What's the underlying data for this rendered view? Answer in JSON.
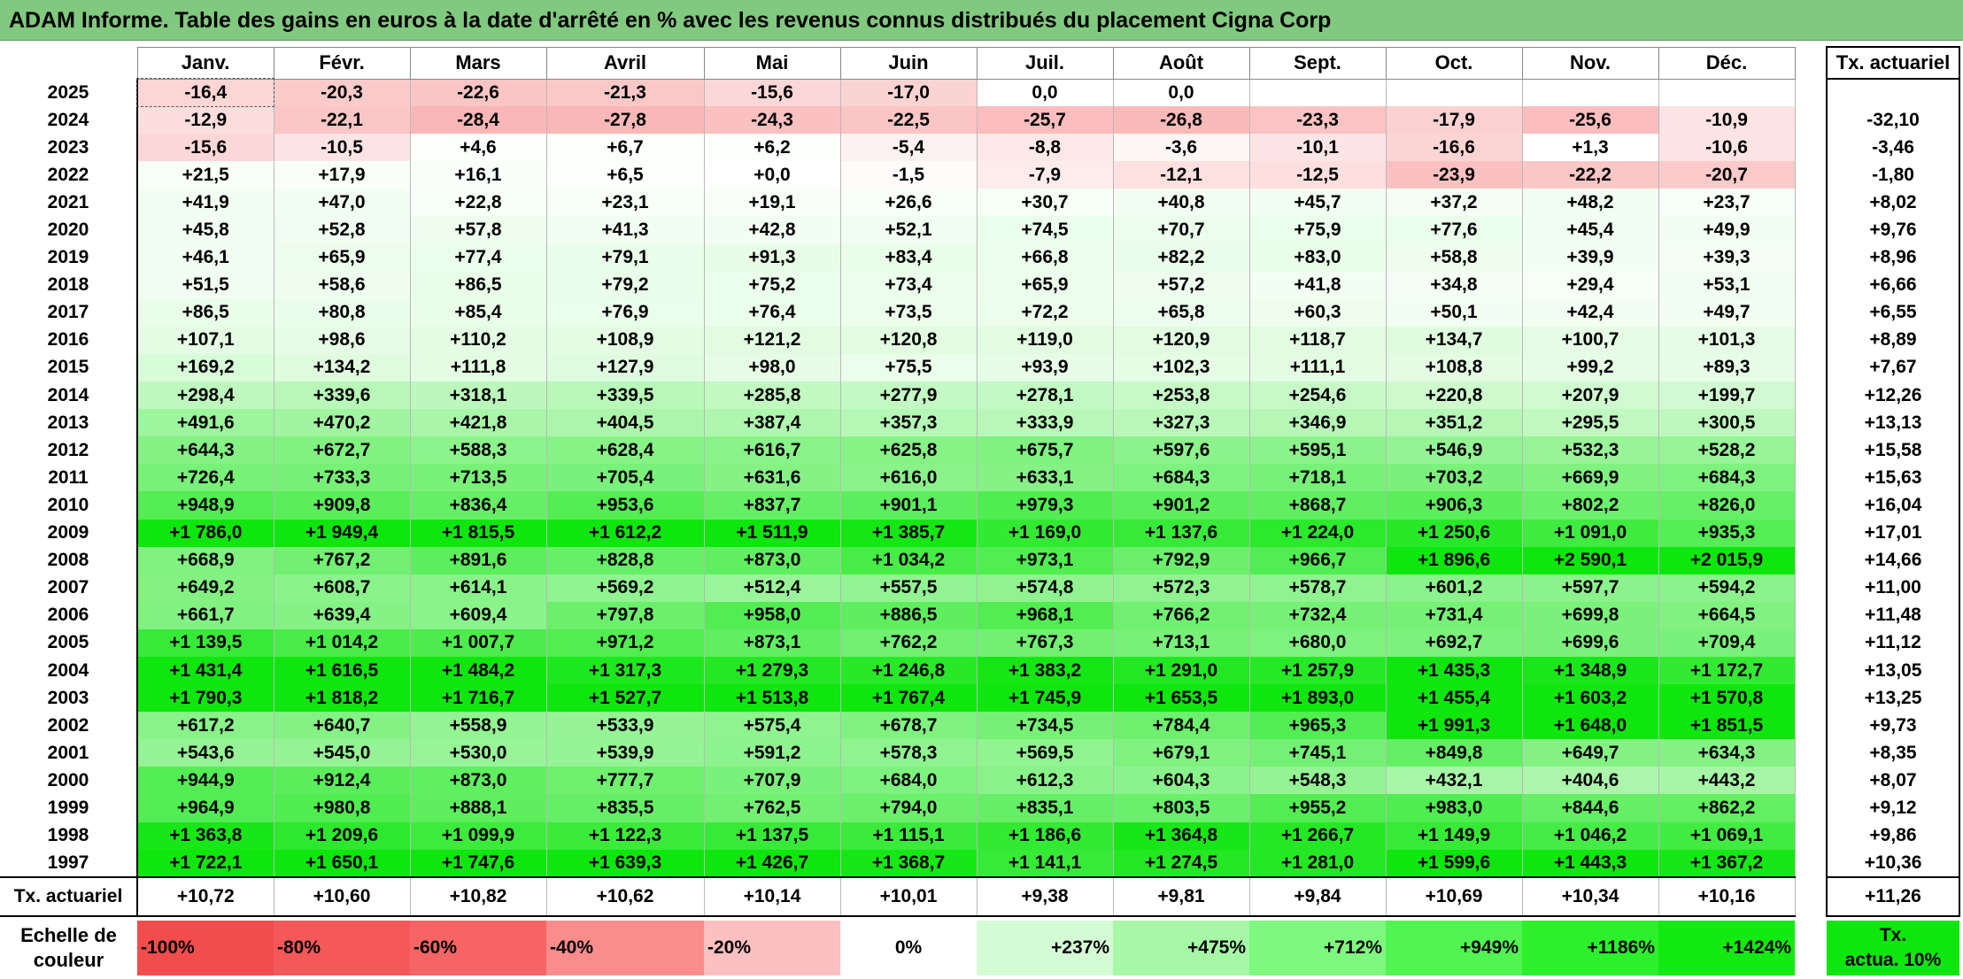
{
  "title": "ADAM Informe. Table des gains en euros à la date d'arrêté en % avec les revenus connus distribués du placement Cigna Corp",
  "months": [
    "Janv.",
    "Févr.",
    "Mars",
    "Avril",
    "Mai",
    "Juin",
    "Juil.",
    "Août",
    "Sept.",
    "Oct.",
    "Nov.",
    "Déc."
  ],
  "actuarial_header": "Tx. actuariel",
  "rows": [
    {
      "year": "2025",
      "values": [
        "-16,4",
        "-20,3",
        "-22,6",
        "-21,3",
        "-15,6",
        "-17,0",
        "0,0",
        "0,0",
        "",
        "",
        "",
        ""
      ],
      "actuarial": ""
    },
    {
      "year": "2024",
      "values": [
        "-12,9",
        "-22,1",
        "-28,4",
        "-27,8",
        "-24,3",
        "-22,5",
        "-25,7",
        "-26,8",
        "-23,3",
        "-17,9",
        "-25,6",
        "-10,9"
      ],
      "actuarial": "-32,10"
    },
    {
      "year": "2023",
      "values": [
        "-15,6",
        "-10,5",
        "+4,6",
        "+6,7",
        "+6,2",
        "-5,4",
        "-8,8",
        "-3,6",
        "-10,1",
        "-16,6",
        "+1,3",
        "-10,6"
      ],
      "actuarial": "-3,46"
    },
    {
      "year": "2022",
      "values": [
        "+21,5",
        "+17,9",
        "+16,1",
        "+6,5",
        "+0,0",
        "-1,5",
        "-7,9",
        "-12,1",
        "-12,5",
        "-23,9",
        "-22,2",
        "-20,7"
      ],
      "actuarial": "-1,80"
    },
    {
      "year": "2021",
      "values": [
        "+41,9",
        "+47,0",
        "+22,8",
        "+23,1",
        "+19,1",
        "+26,6",
        "+30,7",
        "+40,8",
        "+45,7",
        "+37,2",
        "+48,2",
        "+23,7"
      ],
      "actuarial": "+8,02"
    },
    {
      "year": "2020",
      "values": [
        "+45,8",
        "+52,8",
        "+57,8",
        "+41,3",
        "+42,8",
        "+52,1",
        "+74,5",
        "+70,7",
        "+75,9",
        "+77,6",
        "+45,4",
        "+49,9"
      ],
      "actuarial": "+9,76"
    },
    {
      "year": "2019",
      "values": [
        "+46,1",
        "+65,9",
        "+77,4",
        "+79,1",
        "+91,3",
        "+83,4",
        "+66,8",
        "+82,2",
        "+83,0",
        "+58,8",
        "+39,9",
        "+39,3"
      ],
      "actuarial": "+8,96"
    },
    {
      "year": "2018",
      "values": [
        "+51,5",
        "+58,6",
        "+86,5",
        "+79,2",
        "+75,2",
        "+73,4",
        "+65,9",
        "+57,2",
        "+41,8",
        "+34,8",
        "+29,4",
        "+53,1"
      ],
      "actuarial": "+6,66"
    },
    {
      "year": "2017",
      "values": [
        "+86,5",
        "+80,8",
        "+85,4",
        "+76,9",
        "+76,4",
        "+73,5",
        "+72,2",
        "+65,8",
        "+60,3",
        "+50,1",
        "+42,4",
        "+49,7"
      ],
      "actuarial": "+6,55"
    },
    {
      "year": "2016",
      "values": [
        "+107,1",
        "+98,6",
        "+110,2",
        "+108,9",
        "+121,2",
        "+120,8",
        "+119,0",
        "+120,9",
        "+118,7",
        "+134,7",
        "+100,7",
        "+101,3"
      ],
      "actuarial": "+8,89"
    },
    {
      "year": "2015",
      "values": [
        "+169,2",
        "+134,2",
        "+111,8",
        "+127,9",
        "+98,0",
        "+75,5",
        "+93,9",
        "+102,3",
        "+111,1",
        "+108,8",
        "+99,2",
        "+89,3"
      ],
      "actuarial": "+7,67"
    },
    {
      "year": "2014",
      "values": [
        "+298,4",
        "+339,6",
        "+318,1",
        "+339,5",
        "+285,8",
        "+277,9",
        "+278,1",
        "+253,8",
        "+254,6",
        "+220,8",
        "+207,9",
        "+199,7"
      ],
      "actuarial": "+12,26"
    },
    {
      "year": "2013",
      "values": [
        "+491,6",
        "+470,2",
        "+421,8",
        "+404,5",
        "+387,4",
        "+357,3",
        "+333,9",
        "+327,3",
        "+346,9",
        "+351,2",
        "+295,5",
        "+300,5"
      ],
      "actuarial": "+13,13"
    },
    {
      "year": "2012",
      "values": [
        "+644,3",
        "+672,7",
        "+588,3",
        "+628,4",
        "+616,7",
        "+625,8",
        "+675,7",
        "+597,6",
        "+595,1",
        "+546,9",
        "+532,3",
        "+528,2"
      ],
      "actuarial": "+15,58"
    },
    {
      "year": "2011",
      "values": [
        "+726,4",
        "+733,3",
        "+713,5",
        "+705,4",
        "+631,6",
        "+616,0",
        "+633,1",
        "+684,3",
        "+718,1",
        "+703,2",
        "+669,9",
        "+684,3"
      ],
      "actuarial": "+15,63"
    },
    {
      "year": "2010",
      "values": [
        "+948,9",
        "+909,8",
        "+836,4",
        "+953,6",
        "+837,7",
        "+901,1",
        "+979,3",
        "+901,2",
        "+868,7",
        "+906,3",
        "+802,2",
        "+826,0"
      ],
      "actuarial": "+16,04"
    },
    {
      "year": "2009",
      "values": [
        "+1 786,0",
        "+1 949,4",
        "+1 815,5",
        "+1 612,2",
        "+1 511,9",
        "+1 385,7",
        "+1 169,0",
        "+1 137,6",
        "+1 224,0",
        "+1 250,6",
        "+1 091,0",
        "+935,3"
      ],
      "actuarial": "+17,01"
    },
    {
      "year": "2008",
      "values": [
        "+668,9",
        "+767,2",
        "+891,6",
        "+828,8",
        "+873,0",
        "+1 034,2",
        "+973,1",
        "+792,9",
        "+966,7",
        "+1 896,6",
        "+2 590,1",
        "+2 015,9"
      ],
      "actuarial": "+14,66"
    },
    {
      "year": "2007",
      "values": [
        "+649,2",
        "+608,7",
        "+614,1",
        "+569,2",
        "+512,4",
        "+557,5",
        "+574,8",
        "+572,3",
        "+578,7",
        "+601,2",
        "+597,7",
        "+594,2"
      ],
      "actuarial": "+11,00"
    },
    {
      "year": "2006",
      "values": [
        "+661,7",
        "+639,4",
        "+609,4",
        "+797,8",
        "+958,0",
        "+886,5",
        "+968,1",
        "+766,2",
        "+732,4",
        "+731,4",
        "+699,8",
        "+664,5"
      ],
      "actuarial": "+11,48"
    },
    {
      "year": "2005",
      "values": [
        "+1 139,5",
        "+1 014,2",
        "+1 007,7",
        "+971,2",
        "+873,1",
        "+762,2",
        "+767,3",
        "+713,1",
        "+680,0",
        "+692,7",
        "+699,6",
        "+709,4"
      ],
      "actuarial": "+11,12"
    },
    {
      "year": "2004",
      "values": [
        "+1 431,4",
        "+1 616,5",
        "+1 484,2",
        "+1 317,3",
        "+1 279,3",
        "+1 246,8",
        "+1 383,2",
        "+1 291,0",
        "+1 257,9",
        "+1 435,3",
        "+1 348,9",
        "+1 172,7"
      ],
      "actuarial": "+13,05"
    },
    {
      "year": "2003",
      "values": [
        "+1 790,3",
        "+1 818,2",
        "+1 716,7",
        "+1 527,7",
        "+1 513,8",
        "+1 767,4",
        "+1 745,9",
        "+1 653,5",
        "+1 893,0",
        "+1 455,4",
        "+1 603,2",
        "+1 570,8"
      ],
      "actuarial": "+13,25"
    },
    {
      "year": "2002",
      "values": [
        "+617,2",
        "+640,7",
        "+558,9",
        "+533,9",
        "+575,4",
        "+678,7",
        "+734,5",
        "+784,4",
        "+965,3",
        "+1 991,3",
        "+1 648,0",
        "+1 851,5"
      ],
      "actuarial": "+9,73"
    },
    {
      "year": "2001",
      "values": [
        "+543,6",
        "+545,0",
        "+530,0",
        "+539,9",
        "+591,2",
        "+578,3",
        "+569,5",
        "+679,1",
        "+745,1",
        "+849,8",
        "+649,7",
        "+634,3"
      ],
      "actuarial": "+8,35"
    },
    {
      "year": "2000",
      "values": [
        "+944,9",
        "+912,4",
        "+873,0",
        "+777,7",
        "+707,9",
        "+684,0",
        "+612,3",
        "+604,3",
        "+548,3",
        "+432,1",
        "+404,6",
        "+443,2"
      ],
      "actuarial": "+8,07"
    },
    {
      "year": "1999",
      "values": [
        "+964,9",
        "+980,8",
        "+888,1",
        "+835,5",
        "+762,5",
        "+794,0",
        "+835,1",
        "+803,5",
        "+955,2",
        "+983,0",
        "+844,6",
        "+862,2"
      ],
      "actuarial": "+9,12"
    },
    {
      "year": "1998",
      "values": [
        "+1 363,8",
        "+1 209,6",
        "+1 099,9",
        "+1 122,3",
        "+1 137,5",
        "+1 115,1",
        "+1 186,6",
        "+1 364,8",
        "+1 266,7",
        "+1 149,9",
        "+1 046,2",
        "+1 069,1"
      ],
      "actuarial": "+9,86"
    },
    {
      "year": "1997",
      "values": [
        "+1 722,1",
        "+1 650,1",
        "+1 747,6",
        "+1 639,3",
        "+1 426,7",
        "+1 368,7",
        "+1 141,1",
        "+1 274,5",
        "+1 281,0",
        "+1 599,6",
        "+1 443,3",
        "+1 367,2"
      ],
      "actuarial": "+10,36"
    }
  ],
  "footer": {
    "label": "Tx. actuariel",
    "values": [
      "+10,72",
      "+10,60",
      "+10,82",
      "+10,62",
      "+10,14",
      "+10,01",
      "+9,38",
      "+9,81",
      "+9,84",
      "+10,69",
      "+10,34",
      "+10,16"
    ],
    "actuarial": "+11,26"
  },
  "scale": {
    "label_line1": "Echelle de",
    "label_line2": "couleur",
    "items": [
      {
        "label": "-100%",
        "color": "#f24c4c",
        "kind": "neg"
      },
      {
        "label": "-80%",
        "color": "#f55858",
        "kind": "neg"
      },
      {
        "label": "-60%",
        "color": "#f76464",
        "kind": "neg"
      },
      {
        "label": "-40%",
        "color": "#fa8c8c",
        "kind": "neg"
      },
      {
        "label": "-20%",
        "color": "#fcc0c0",
        "kind": "neg"
      },
      {
        "label": "0%",
        "color": "#ffffff",
        "kind": "zero"
      },
      {
        "label": "+237%",
        "color": "#d4fcd4",
        "kind": "pos"
      },
      {
        "label": "+475%",
        "color": "#a6f8a6",
        "kind": "pos"
      },
      {
        "label": "+712%",
        "color": "#7ef87e",
        "kind": "pos"
      },
      {
        "label": "+949%",
        "color": "#52f452",
        "kind": "pos"
      },
      {
        "label": "+1186%",
        "color": "#2df02d",
        "kind": "pos"
      },
      {
        "label": "+1424%",
        "color": "#12ea12",
        "kind": "pos"
      }
    ],
    "actuarial_line1": "Tx.",
    "actuarial_line2": "actua. 10%",
    "actuarial_color": "#0ee60e"
  },
  "colors": {
    "title_bar": "#80c97e",
    "negative": "#f24c4c",
    "positive": "#0ee60e",
    "neutral": "#ffffff"
  }
}
